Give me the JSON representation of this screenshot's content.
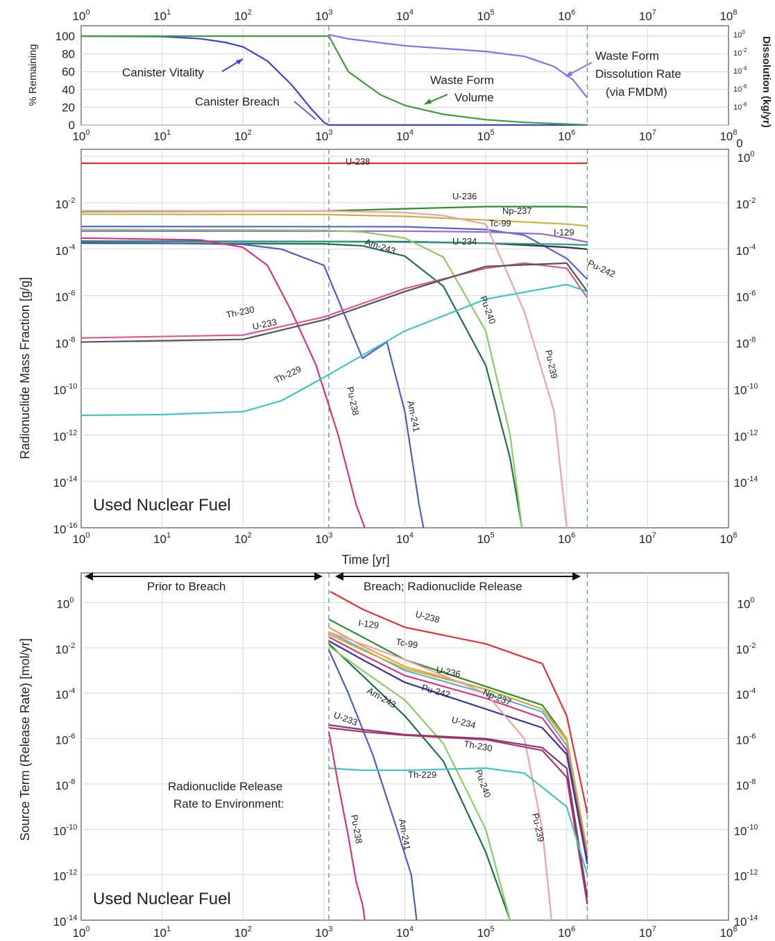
{
  "chart_data": [
    {
      "type": "line",
      "id": "top",
      "xscale": "log",
      "xlim": [
        1,
        100000000
      ],
      "x_ticks": [
        "10^0",
        "10^1",
        "10^2",
        "10^3",
        "10^4",
        "10^5",
        "10^6",
        "10^7",
        "10^8"
      ],
      "ylabel": "% Remaining",
      "ylim": [
        0,
        100
      ],
      "y_ticks": [
        "0",
        "20",
        "40",
        "60",
        "80",
        "100"
      ],
      "y2label": "Dissolution (kg/yr)",
      "y2scale": "log",
      "y2lim": [
        1e-10,
        10
      ],
      "y2_ticks": [
        "10^0",
        "10^-2",
        "10^-4",
        "10^-6",
        "10^-8"
      ],
      "series": [
        {
          "name": "Canister Vitality",
          "color": "#3f3fdc",
          "x": [
            1,
            10,
            30,
            60,
            100,
            200,
            400,
            700,
            1000,
            1150,
            1800000
          ],
          "y": [
            100,
            99.5,
            97,
            93,
            88,
            72,
            45,
            18,
            3,
            0,
            0
          ]
        },
        {
          "name": "Waste Form Volume",
          "color": "#3d9a3d",
          "x": [
            1,
            1000,
            1150,
            2000,
            5000,
            10000,
            30000,
            100000,
            300000,
            1000000,
            1800000
          ],
          "y": [
            100,
            100,
            100,
            60,
            34,
            22,
            12,
            6,
            3,
            1,
            0
          ]
        },
        {
          "name": "Waste Form Dissolution Rate (via FMDM)",
          "color": "#8c6cf0",
          "axis": "y2",
          "x": [
            1150,
            2000,
            10000,
            100000,
            300000,
            700000,
            1200000,
            1800000
          ],
          "y": [
            1,
            0.35,
            0.06,
            0.014,
            0.004,
            0.0003,
            1e-05,
            1e-07
          ]
        }
      ],
      "annotations": [
        "Canister Vitality",
        "Canister Breach",
        "Waste Form",
        "Volume",
        "Waste Form",
        "Dissolution Rate",
        "(via FMDM)"
      ],
      "corner_labels": [
        "0",
        "0"
      ]
    },
    {
      "type": "line",
      "id": "middle",
      "xscale": "log",
      "xlim": [
        1,
        100000000
      ],
      "x_ticks": [
        "10^0",
        "10^1",
        "10^2",
        "10^3",
        "10^4",
        "10^5",
        "10^6",
        "10^7",
        "10^8"
      ],
      "xlabel": "Time [yr]",
      "ylabel": "Radionuclide Mass Fraction  [g/g]",
      "yscale": "log",
      "ylim": [
        1e-16,
        1
      ],
      "y_ticks": [
        "10^-16",
        "10^-14",
        "10^-12",
        "10^-10",
        "10^-8",
        "10^-6",
        "10^-4",
        "10^-2"
      ],
      "y2_ticks": [
        "10^-14",
        "10^-12",
        "10^-10",
        "10^-8",
        "10^-6",
        "10^-4",
        "10^-2",
        "10^0"
      ],
      "inset_label": "Used Nuclear Fuel",
      "series": [
        {
          "name": "U-238",
          "color": "#e03030",
          "x": [
            1,
            1800000
          ],
          "y": [
            0.5,
            0.5
          ]
        },
        {
          "name": "U-236",
          "color": "#2e8b2e",
          "x": [
            1,
            1000,
            10000,
            100000,
            1000000,
            1800000
          ],
          "y": [
            0.0042,
            0.0044,
            0.0055,
            0.0068,
            0.0068,
            0.0065
          ]
        },
        {
          "name": "Np-237",
          "color": "#c8b23a",
          "x": [
            1,
            1000,
            10000,
            100000,
            1000000,
            1800000
          ],
          "y": [
            0.0032,
            0.0031,
            0.0026,
            0.0018,
            0.0012,
            0.001
          ]
        },
        {
          "name": "Tc-99",
          "color": "#5566cc",
          "x": [
            1,
            10000,
            100000,
            300000,
            1000000,
            1800000
          ],
          "y": [
            0.00095,
            0.00092,
            0.0007,
            0.0004,
            4e-05,
            5e-06
          ]
        },
        {
          "name": "I-129",
          "color": "#9966cc",
          "x": [
            1,
            10000,
            100000,
            500000,
            1000000,
            1800000
          ],
          "y": [
            0.0006,
            0.0006,
            0.00055,
            0.00045,
            0.0003,
            0.0002
          ]
        },
        {
          "name": "Pu-242",
          "color": "#333333",
          "x": [
            1,
            10000,
            100000,
            300000,
            1000000,
            1800000
          ],
          "y": [
            0.00022,
            0.00021,
            0.00018,
            0.00015,
            0.00012,
            0.0001
          ]
        },
        {
          "name": "U-234",
          "color": "#2a9d8f",
          "x": [
            1,
            1000,
            10000,
            100000,
            1000000,
            1800000
          ],
          "y": [
            0.00021,
            0.00021,
            0.0002,
            0.00018,
            0.00016,
            0.00015
          ]
        },
        {
          "name": "Am-243",
          "color": "#1f6f4a",
          "x": [
            1,
            1000,
            3000,
            10000,
            30000,
            100000,
            200000,
            280000
          ],
          "y": [
            0.00018,
            0.00017,
            0.00014,
            5e-05,
            2.5e-06,
            1e-09,
            1e-13,
            1e-16
          ]
        },
        {
          "name": "Pu-240",
          "color": "#88cc66",
          "x": [
            1,
            1000,
            3000,
            10000,
            30000,
            100000,
            200000,
            280000
          ],
          "y": [
            0.0007,
            0.00065,
            0.00055,
            0.0003,
            4.5e-05,
            3e-08,
            1e-12,
            1e-16
          ]
        },
        {
          "name": "Pu-239",
          "color": "#f2a0a8",
          "x": [
            1,
            1000,
            10000,
            30000,
            100000,
            300000,
            700000,
            1000000
          ],
          "y": [
            0.0045,
            0.0044,
            0.0038,
            0.0028,
            0.0012,
            2e-07,
            1e-11,
            1e-16
          ]
        },
        {
          "name": "Am-241",
          "color": "#4a5ec0",
          "x": [
            1,
            100,
            300,
            1000,
            3000,
            6000,
            10000,
            15000,
            17000
          ],
          "y": [
            0.0002,
            0.00016,
            0.0001,
            2e-05,
            2e-09,
            1e-08,
            1e-11,
            1e-15,
            1e-16
          ]
        },
        {
          "name": "Pu-238",
          "color": "#d6337a",
          "x": [
            1,
            30,
            100,
            200,
            400,
            800,
            1500,
            2500,
            3200
          ],
          "y": [
            0.0003,
            0.00025,
            0.00012,
            2e-05,
            2e-07,
            1e-09,
            1e-12,
            1e-15,
            1e-16
          ]
        },
        {
          "name": "Th-230",
          "color": "#e05599",
          "x": [
            1,
            100,
            1000,
            10000,
            100000,
            300000,
            1000000,
            1800000
          ],
          "y": [
            1.5e-08,
            2e-08,
            1.2e-07,
            2e-06,
            1.5e-05,
            2.5e-05,
            1.5e-05,
            8e-07
          ]
        },
        {
          "name": "U-233",
          "color": "#555555",
          "x": [
            1,
            100,
            1000,
            10000,
            100000,
            1000000,
            1800000
          ],
          "y": [
            1e-08,
            1.3e-08,
            9e-08,
            1.5e-06,
            1.8e-05,
            2.5e-05,
            1.5e-06
          ]
        },
        {
          "name": "Th-229",
          "color": "#3fc4c4",
          "x": [
            1,
            10,
            100,
            300,
            1000,
            10000,
            100000,
            1000000,
            1800000
          ],
          "y": [
            7e-12,
            7.5e-12,
            1e-11,
            3e-11,
            3e-10,
            3e-08,
            7e-07,
            3e-06,
            1.5e-06
          ]
        }
      ]
    },
    {
      "type": "line",
      "id": "bottom",
      "xscale": "log",
      "xlim": [
        1,
        100000000
      ],
      "x_ticks": [
        "10^0",
        "10^1",
        "10^2",
        "10^3",
        "10^4",
        "10^5",
        "10^6",
        "10^7",
        "10^8"
      ],
      "ylabel": "Source Term (Release Rate) [mol/yr]",
      "yscale": "log",
      "ylim": [
        1e-14,
        10
      ],
      "y_ticks": [
        "10^-14",
        "10^-12",
        "10^-10",
        "10^-8",
        "10^-6",
        "10^-4",
        "10^-2",
        "10^0"
      ],
      "y2_ticks": [
        "10^-14",
        "10^-12",
        "10^-10",
        "10^-8",
        "10^-6",
        "10^-4",
        "10^-2",
        "10^0"
      ],
      "inset_label": "Used Nuclear Fuel",
      "annotations": [
        "Prior to Breach",
        "Breach; Radionuclide Release",
        "Radionuclide Release",
        "Rate to Environment:"
      ],
      "series": [
        {
          "name": "U-238",
          "color": "#e03030",
          "x": [
            1200,
            3000,
            10000,
            100000,
            500000,
            1000000,
            1800000
          ],
          "y": [
            3,
            0.5,
            0.08,
            0.015,
            0.002,
            1e-05,
            5e-10
          ]
        },
        {
          "name": "U-236",
          "color": "#2e8b2e",
          "x": [
            1150,
            3000,
            10000,
            100000,
            500000,
            1000000,
            1800000
          ],
          "y": [
            0.18,
            0.03,
            0.003,
            0.0002,
            3e-05,
            1e-06,
            1e-11
          ]
        },
        {
          "name": "I-129",
          "color": "#e8a23a",
          "x": [
            1150,
            3000,
            10000,
            100000,
            500000,
            1000000,
            1800000
          ],
          "y": [
            0.08,
            0.012,
            0.0015,
            0.00015,
            2e-05,
            8e-07,
            1e-11
          ]
        },
        {
          "name": "Tc-99",
          "color": "#66aadd",
          "x": [
            1150,
            3000,
            10000,
            100000,
            500000,
            1000000,
            1800000
          ],
          "y": [
            0.05,
            0.009,
            0.001,
            0.0001,
            1.5e-05,
            5e-07,
            8e-12
          ]
        },
        {
          "name": "Np-237",
          "color": "#c8b23a",
          "x": [
            1150,
            3000,
            10000,
            100000,
            500000,
            1000000,
            1800000
          ],
          "y": [
            0.04,
            0.008,
            0.0012,
            0.00015,
            2e-05,
            1e-06,
            1e-11
          ]
        },
        {
          "name": "Pu-242",
          "color": "#d6337a",
          "x": [
            1150,
            3000,
            10000,
            100000,
            500000,
            1000000,
            1800000
          ],
          "y": [
            0.03,
            0.005,
            0.0006,
            6e-05,
            8e-06,
            3e-07,
            5e-12
          ]
        },
        {
          "name": "U-234",
          "color": "#333399",
          "x": [
            1150,
            3000,
            10000,
            100000,
            500000,
            1000000,
            1800000
          ],
          "y": [
            0.02,
            0.003,
            0.0003,
            2e-05,
            3e-06,
            2e-07,
            3e-12
          ]
        },
        {
          "name": "Am-243",
          "color": "#1f6f4a",
          "x": [
            1150,
            3000,
            10000,
            30000,
            100000,
            200000
          ],
          "y": [
            0.015,
            0.0006,
            1e-05,
            1e-07,
            1e-11,
            1e-14
          ]
        },
        {
          "name": "Pu-240",
          "color": "#88cc66",
          "x": [
            1150,
            3000,
            10000,
            30000,
            100000,
            200000
          ],
          "y": [
            0.012,
            0.001,
            5e-05,
            6e-07,
            1e-10,
            1e-14
          ]
        },
        {
          "name": "Pu-239",
          "color": "#f2a0a8",
          "x": [
            1150,
            10000,
            100000,
            300000,
            500000,
            650000
          ],
          "y": [
            0.05,
            0.003,
            0.0001,
            1e-06,
            1e-10,
            1e-14
          ]
        },
        {
          "name": "Am-241",
          "color": "#4a5ec0",
          "x": [
            1150,
            2000,
            4000,
            8000,
            12000,
            14000
          ],
          "y": [
            0.008,
            0.0001,
            2e-07,
            1e-10,
            1e-12,
            1e-14
          ]
        },
        {
          "name": "U-233",
          "color": "#7a3d7a",
          "x": [
            1150,
            3000,
            10000,
            100000,
            500000,
            1000000,
            1800000
          ],
          "y": [
            4e-06,
            2.5e-06,
            1.5e-06,
            1e-06,
            4e-07,
            5e-08,
            1e-13
          ]
        },
        {
          "name": "Th-230",
          "color": "#b03060",
          "x": [
            1150,
            3000,
            10000,
            100000,
            500000,
            1000000,
            1800000
          ],
          "y": [
            3e-06,
            2e-06,
            1.4e-06,
            9e-07,
            3e-07,
            2e-08,
            5e-14
          ]
        },
        {
          "name": "Th-229",
          "color": "#3fc4c4",
          "x": [
            1150,
            3000,
            10000,
            100000,
            300000,
            1000000,
            1800000
          ],
          "y": [
            5e-08,
            4e-08,
            4e-08,
            5e-08,
            3e-08,
            1e-09,
            1e-12
          ]
        },
        {
          "name": "Pu-238",
          "color": "#d6337a",
          "x": [
            1150,
            1500,
            2000,
            2500,
            3000,
            3200
          ],
          "y": [
            2e-06,
            1e-08,
            5e-11,
            5e-13,
            5e-14,
            1e-14
          ]
        }
      ]
    }
  ]
}
